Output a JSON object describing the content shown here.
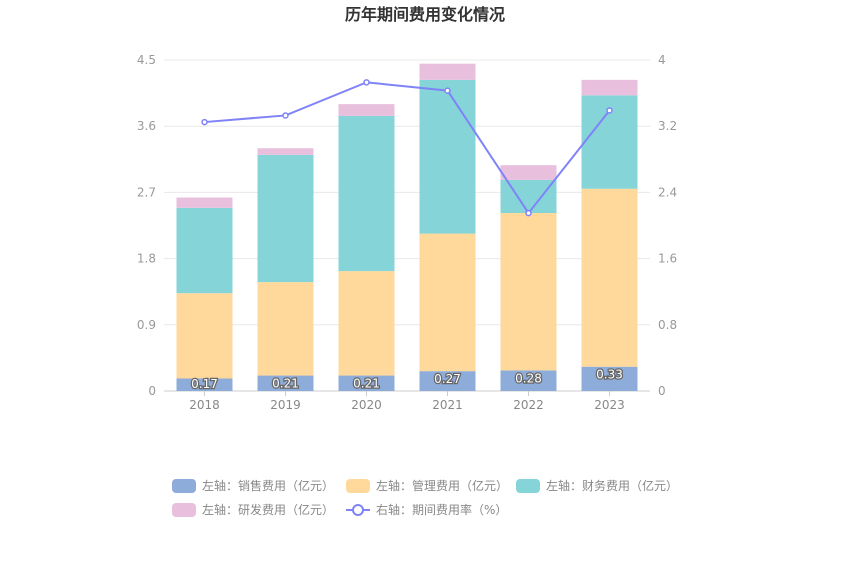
{
  "chart_data": {
    "type": "bar",
    "title": "历年期间费用变化情况",
    "categories": [
      "2018",
      "2019",
      "2020",
      "2021",
      "2022",
      "2023"
    ],
    "left_axis": {
      "min": 0,
      "max": 4.5,
      "ticks": [
        "0",
        "0.9",
        "1.8",
        "2.7",
        "3.6",
        "4.5"
      ]
    },
    "right_axis": {
      "min": 0,
      "max": 4,
      "ticks": [
        "0",
        "0.8",
        "1.6",
        "2.4",
        "3.2",
        "4"
      ]
    },
    "series": [
      {
        "name": "左轴：销售费用（亿元）",
        "axis": "left",
        "type": "stacked-bar",
        "color": "#8eacd9",
        "values": [
          0.17,
          0.21,
          0.21,
          0.27,
          0.28,
          0.33
        ],
        "labels": [
          "0.17",
          "0.21",
          "0.21",
          "0.27",
          "0.28",
          "0.33"
        ]
      },
      {
        "name": "左轴：管理费用（亿元）",
        "axis": "left",
        "type": "stacked-bar",
        "color": "#ffd99b",
        "values": [
          1.16,
          1.27,
          1.42,
          1.87,
          2.14,
          2.42
        ]
      },
      {
        "name": "左轴：财务费用（亿元）",
        "axis": "left",
        "type": "stacked-bar",
        "color": "#85d4d8",
        "values": [
          1.16,
          1.73,
          2.11,
          2.09,
          0.45,
          1.27
        ]
      },
      {
        "name": "左轴：研发费用（亿元）",
        "axis": "left",
        "type": "stacked-bar",
        "color": "#e8bfdd",
        "values": [
          0.14,
          0.09,
          0.16,
          0.22,
          0.2,
          0.21
        ]
      },
      {
        "name": "右轴：期间费用率（%）",
        "axis": "right",
        "type": "line",
        "color": "#7f83f7",
        "values": [
          3.25,
          3.33,
          3.73,
          3.63,
          2.15,
          3.39
        ]
      }
    ],
    "legend_position": "bottom"
  }
}
